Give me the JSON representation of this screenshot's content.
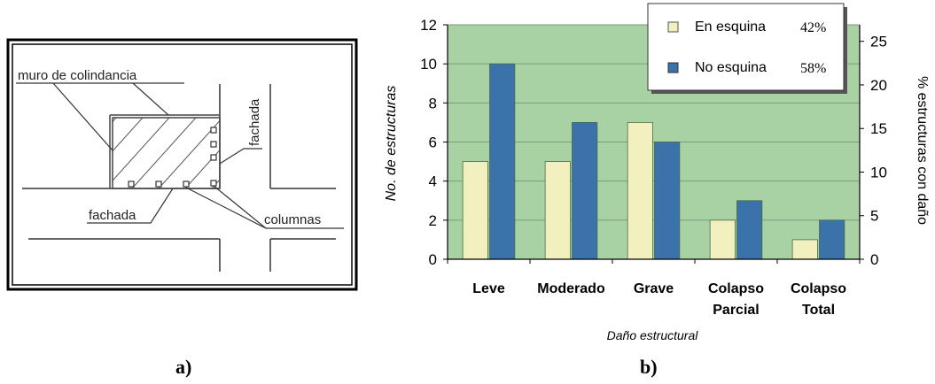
{
  "panel_a": {
    "label": "a)",
    "labels": {
      "muro": "muro de colindancia",
      "fachada_right": "fachada",
      "fachada_bottom": "fachada",
      "columnas": "columnas"
    }
  },
  "panel_b": {
    "label": "b)"
  },
  "chart_data": {
    "type": "bar",
    "categories": [
      "Leve",
      "Moderado",
      "Grave",
      "Colapso Parcial",
      "Colapso Total"
    ],
    "category_lines": [
      [
        "Leve"
      ],
      [
        "Moderado"
      ],
      [
        "Grave"
      ],
      [
        "Colapso",
        "Parcial"
      ],
      [
        "Colapso",
        "Total"
      ]
    ],
    "series": [
      {
        "name": "En esquina",
        "pct": "42%",
        "color": "#f2f0bf",
        "values": [
          5,
          5,
          7,
          2,
          1
        ]
      },
      {
        "name": "No esquina",
        "pct": "58%",
        "color": "#3b72aa",
        "values": [
          10,
          7,
          6,
          3,
          2
        ]
      }
    ],
    "xlabel": "Daño estructural",
    "ylabel": "No. de estructuras",
    "ylabel_right": "% estructuras con daño",
    "ylim": [
      0,
      12
    ],
    "yticks": [
      0,
      2,
      4,
      6,
      8,
      10,
      12
    ],
    "ylim_right": [
      0,
      26.9
    ],
    "yticks_right": [
      0,
      5,
      10,
      15,
      20,
      25
    ],
    "plot_background": "#a9d2a4",
    "grid": true,
    "legend": "top-right"
  }
}
